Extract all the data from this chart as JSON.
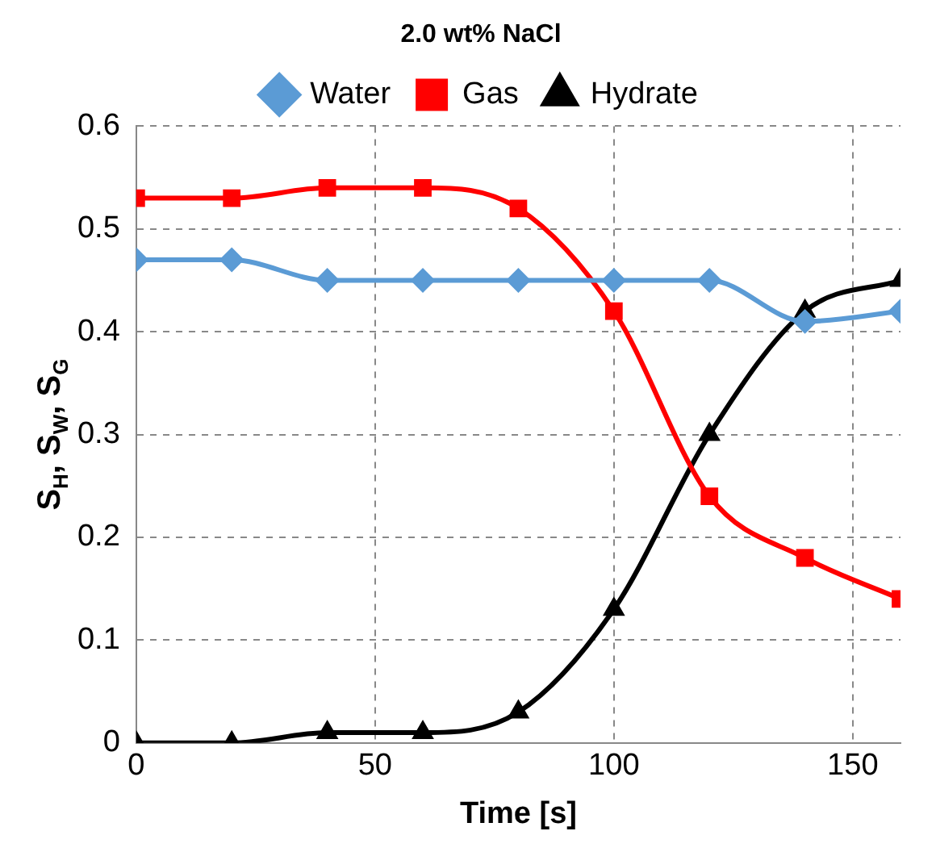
{
  "chart_data": {
    "type": "line",
    "title": "2.0 wt% NaCl",
    "xlabel": "Time [s]",
    "ylabel": "S$_{H}$, S$_{W}$, S$_{G}$",
    "x": [
      0,
      20,
      40,
      60,
      80,
      100,
      120,
      140,
      160
    ],
    "series": [
      {
        "name": "Water",
        "color": "#5b9bd5",
        "marker": "diamond",
        "values": [
          0.47,
          0.47,
          0.45,
          0.45,
          0.45,
          0.45,
          0.45,
          0.41,
          0.42
        ]
      },
      {
        "name": "Gas",
        "color": "#ff0000",
        "marker": "square",
        "values": [
          0.53,
          0.53,
          0.54,
          0.54,
          0.52,
          0.42,
          0.24,
          0.18,
          0.14
        ]
      },
      {
        "name": "Hydrate",
        "color": "#000000",
        "marker": "triangle",
        "values": [
          0,
          0,
          0.01,
          0.01,
          0.03,
          0.13,
          0.3,
          0.42,
          0.45
        ]
      }
    ],
    "xlim": [
      0,
      160
    ],
    "xticks": [
      0,
      50,
      100,
      150
    ],
    "ylim": [
      0,
      0.6
    ],
    "yticks": [
      0,
      0.1,
      0.2,
      0.3,
      0.4,
      0.5,
      0.6
    ],
    "grid": true,
    "legend": "top",
    "line_style": "solid"
  }
}
